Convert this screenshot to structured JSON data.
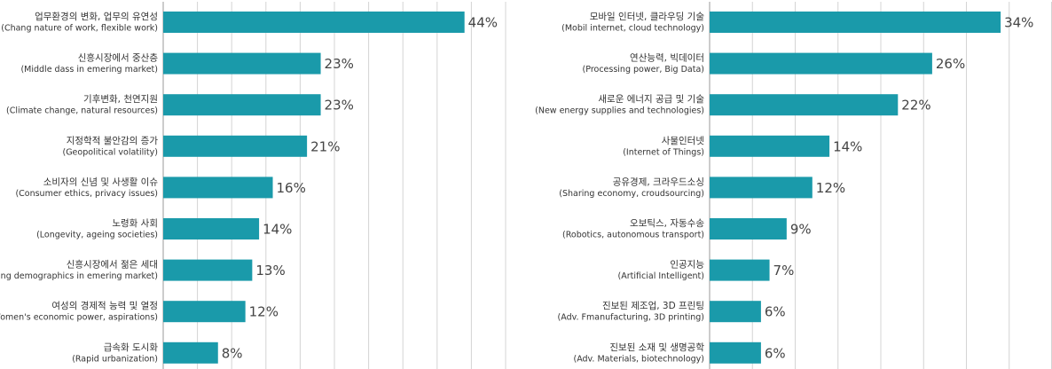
{
  "chart_data": [
    {
      "type": "barh",
      "color": "#1a9aaa",
      "grid": true,
      "categories": [
        "업무환경의 변화, 업무의 유연성",
        "신흥시장에서 중산층",
        "기후변화, 천연지원",
        "지정학적 불안감의 증가",
        "소비자의 신념 및 사생활 이슈",
        "노령화 사회",
        "신흥시장에서 젊은 세대",
        "여성의 경제적 능력 및 열정",
        "급속화 도시화"
      ],
      "subcategories": [
        "(Chang nature of work, flexible work)",
        "(Middle dass in emering market)",
        "(Climate change, natural resources)",
        "(Geopolitical volatility)",
        "(Consumer ethics, privacy issues)",
        "(Longevity, ageing societies)",
        "Young demographics in emering market)",
        "(Women's economic power, aspirations)",
        "(Rapid urbanization)"
      ],
      "values": [
        44,
        23,
        23,
        21,
        16,
        14,
        13,
        12,
        8
      ],
      "value_labels": [
        "44%",
        "23%",
        "23%",
        "21%",
        "16%",
        "14%",
        "13%",
        "12%",
        "8%"
      ],
      "xlim": [
        0,
        50
      ],
      "xticks": [
        0,
        5,
        10,
        15,
        20,
        25,
        30,
        35,
        40,
        45,
        50
      ]
    },
    {
      "type": "barh",
      "color": "#1a9aaa",
      "grid": true,
      "categories": [
        "모바일 인터넷, 클라우딩 기술",
        "연산능력, 빅데이터",
        "새로운 에너지 공급 및 기술",
        "사물인터넷",
        "공유경제, 크라우드소싱",
        "오보틱스, 자동수송",
        "인공지능",
        "진보된 제조업, 3D 프린팅",
        "진보된 소재 및 생명공학"
      ],
      "subcategories": [
        "(Mobil internet, cloud technology)",
        "(Processing power, Big Data)",
        "(New energy supplies and technologies)",
        "(Internet of Things)",
        "(Sharing economy, croudsourcing)",
        "(Robotics, autonomous transport)",
        "(Artificial Intelligent)",
        "(Adv. Fmanufacturing, 3D printing)",
        "(Adv. Materials, biotechnology)"
      ],
      "values": [
        34,
        26,
        22,
        14,
        12,
        9,
        7,
        6,
        6
      ],
      "value_labels": [
        "34%",
        "26%",
        "22%",
        "14%",
        "12%",
        "9%",
        "7%",
        "6%",
        "6%"
      ],
      "xlim": [
        0,
        40
      ],
      "xticks": [
        0,
        5,
        10,
        15,
        20,
        25,
        30,
        35,
        40
      ]
    }
  ]
}
